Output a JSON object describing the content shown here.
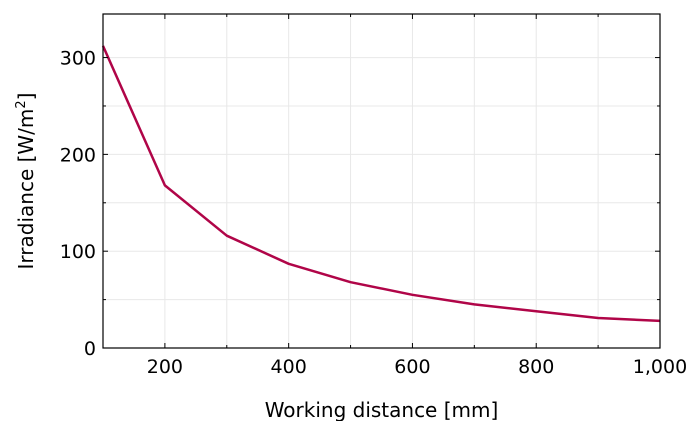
{
  "chart_data": {
    "type": "line",
    "xlabel": "Working distance [mm]",
    "ylabel_main": "Irradiance [W/m",
    "ylabel_sup": "2",
    "ylabel_end": "]",
    "xlim": [
      100,
      1000
    ],
    "ylim": [
      0,
      345
    ],
    "x_ticks": [
      200,
      400,
      600,
      800,
      1000
    ],
    "x_tick_labels": [
      "200",
      "400",
      "600",
      "800",
      "1,000"
    ],
    "y_ticks": [
      0,
      100,
      200,
      300
    ],
    "y_tick_labels": [
      "0",
      "100",
      "200",
      "300"
    ],
    "grid": true,
    "series": [
      {
        "color": "#b00548",
        "x": [
          100,
          200,
          300,
          400,
          500,
          600,
          700,
          800,
          900,
          1000
        ],
        "y": [
          312,
          168,
          116,
          87,
          68,
          55,
          45,
          38,
          31,
          28
        ]
      }
    ]
  }
}
